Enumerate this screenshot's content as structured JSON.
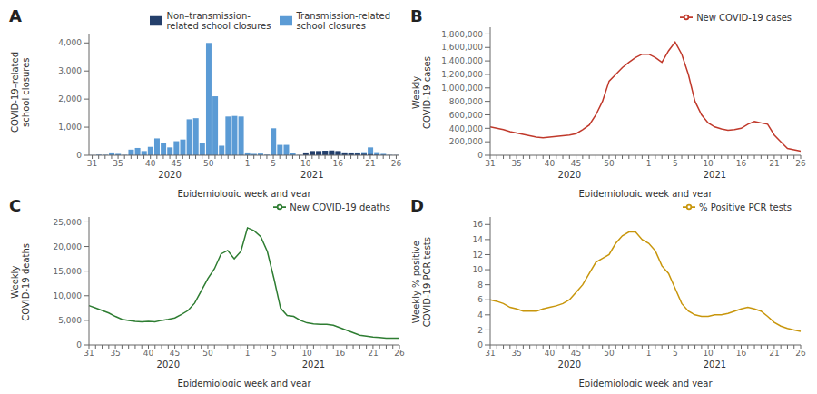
{
  "chart_data": [
    {
      "type": "bar",
      "title": "A",
      "x_label": "Epidemiologic week and year",
      "y_label": "COVID-19–related\nschool closures",
      "categories": [
        "31",
        null,
        null,
        null,
        "35",
        null,
        null,
        null,
        null,
        "40",
        null,
        null,
        null,
        "45",
        null,
        null,
        null,
        null,
        "50",
        null,
        null,
        null,
        null,
        null,
        "1",
        null,
        null,
        null,
        "5",
        null,
        null,
        null,
        null,
        "10",
        null,
        null,
        null,
        null,
        "16",
        null,
        null,
        null,
        null,
        "21",
        null,
        null,
        null,
        "26"
      ],
      "annotations": [
        {
          "text": "2020",
          "x": 12
        },
        {
          "text": "2021",
          "x": 34
        }
      ],
      "series": [
        {
          "name": "Transmission-related\nschool closures",
          "color": "#5b9bd5",
          "values": [
            5,
            20,
            15,
            100,
            50,
            10,
            200,
            260,
            150,
            300,
            600,
            430,
            280,
            500,
            560,
            1280,
            1320,
            420,
            4000,
            2100,
            340,
            1380,
            1400,
            1380,
            100,
            50,
            60,
            20,
            960,
            370,
            370,
            70,
            5,
            5,
            130,
            100,
            160,
            130,
            120,
            100,
            100,
            100,
            110,
            280,
            110,
            50,
            10,
            5
          ]
        },
        {
          "name": "Non–transmission-\nrelated school closures",
          "color": "#243f6b",
          "values": [
            2,
            5,
            3,
            5,
            5,
            5,
            5,
            5,
            5,
            5,
            5,
            5,
            5,
            5,
            5,
            5,
            5,
            5,
            5,
            5,
            5,
            5,
            5,
            5,
            5,
            5,
            5,
            5,
            5,
            5,
            5,
            5,
            5,
            100,
            150,
            150,
            160,
            170,
            150,
            100,
            80,
            60,
            50,
            40,
            20,
            10,
            5,
            5
          ]
        }
      ],
      "ylim": [
        0,
        4300
      ],
      "yticks": [
        0,
        {
          "value": 1000,
          "label": "1,000"
        },
        {
          "value": 2000,
          "label": "2,000"
        },
        {
          "value": 3000,
          "label": "3,000"
        },
        {
          "value": 4000,
          "label": "4,000"
        }
      ],
      "legend": "upper right",
      "grid": false
    },
    {
      "type": "line",
      "title": "B",
      "x_label": "Epidemiologic week and year",
      "y_label": "Weekly\nCOVID-19 cases",
      "categories": [
        "31",
        null,
        null,
        null,
        "35",
        null,
        null,
        null,
        null,
        "40",
        null,
        null,
        null,
        "45",
        null,
        null,
        null,
        null,
        "50",
        null,
        null,
        null,
        null,
        null,
        "1",
        null,
        null,
        null,
        "5",
        null,
        null,
        null,
        null,
        "10",
        null,
        null,
        null,
        null,
        "16",
        null,
        null,
        null,
        null,
        "21",
        null,
        null,
        null,
        "26"
      ],
      "annotations": [
        {
          "text": "2020",
          "x": 12
        },
        {
          "text": "2021",
          "x": 34
        }
      ],
      "series": [
        {
          "name": "New COVID-19 cases",
          "color": "#c0392b",
          "values": [
            420000,
            400000,
            380000,
            350000,
            330000,
            310000,
            290000,
            270000,
            260000,
            270000,
            280000,
            290000,
            300000,
            320000,
            380000,
            450000,
            600000,
            800000,
            1100000,
            1200000,
            1300000,
            1380000,
            1450000,
            1500000,
            1500000,
            1450000,
            1380000,
            1550000,
            1680000,
            1500000,
            1200000,
            800000,
            600000,
            480000,
            420000,
            390000,
            370000,
            380000,
            400000,
            460000,
            500000,
            480000,
            460000,
            300000,
            200000,
            100000,
            80000,
            60000
          ]
        }
      ],
      "ylim": [
        0,
        1900000
      ],
      "yticks": [
        0,
        {
          "value": 200000,
          "label": "200,000"
        },
        {
          "value": 400000,
          "label": "400,000"
        },
        {
          "value": 600000,
          "label": "600,000"
        },
        {
          "value": 800000,
          "label": "800,000"
        },
        {
          "value": 1000000,
          "label": "1,000,000"
        },
        {
          "value": 1200000,
          "label": "1,200,000"
        },
        {
          "value": 1400000,
          "label": "1,400,000"
        },
        {
          "value": 1600000,
          "label": "1,600,000"
        },
        {
          "value": 1800000,
          "label": "1,800,000"
        }
      ],
      "legend": "upper right",
      "grid": false
    },
    {
      "type": "line",
      "title": "C",
      "x_label": "Epidemiologic week and year",
      "y_label": "Weekly\nCOVID-19 deaths",
      "categories": [
        "31",
        null,
        null,
        null,
        "35",
        null,
        null,
        null,
        null,
        "40",
        null,
        null,
        null,
        "45",
        null,
        null,
        null,
        null,
        "50",
        null,
        null,
        null,
        null,
        null,
        "1",
        null,
        null,
        null,
        "5",
        null,
        null,
        null,
        null,
        "10",
        null,
        null,
        null,
        null,
        "16",
        null,
        null,
        null,
        null,
        "21",
        null,
        null,
        null,
        "26"
      ],
      "annotations": [
        {
          "text": "2020",
          "x": 12
        },
        {
          "text": "2021",
          "x": 34
        }
      ],
      "series": [
        {
          "name": "New COVID-19 deaths",
          "color": "#2e7d32",
          "values": [
            8000,
            7500,
            7000,
            6500,
            5800,
            5200,
            5000,
            4800,
            4700,
            4800,
            4700,
            5000,
            5200,
            5500,
            6200,
            7000,
            8500,
            11000,
            13500,
            15500,
            18500,
            19200,
            17500,
            19000,
            23800,
            23200,
            22000,
            19000,
            13500,
            7500,
            6000,
            5800,
            5000,
            4500,
            4300,
            4200,
            4200,
            4000,
            3500,
            3000,
            2500,
            2000,
            1800,
            1600,
            1500,
            1400,
            1400,
            1400
          ]
        }
      ],
      "ylim": [
        0,
        26000
      ],
      "yticks": [
        0,
        {
          "value": 5000,
          "label": "5,000"
        },
        {
          "value": 10000,
          "label": "10,000"
        },
        {
          "value": 15000,
          "label": "15,000"
        },
        {
          "value": 20000,
          "label": "20,000"
        },
        {
          "value": 25000,
          "label": "25,000"
        }
      ],
      "legend": "upper right",
      "grid": false
    },
    {
      "type": "line",
      "title": "D",
      "x_label": "Epidemiologic week and year",
      "y_label": "Weekly % positive\nCOVID-19 PCR tests",
      "categories": [
        "31",
        null,
        null,
        null,
        "35",
        null,
        null,
        null,
        null,
        "40",
        null,
        null,
        null,
        "45",
        null,
        null,
        null,
        null,
        "50",
        null,
        null,
        null,
        null,
        null,
        "1",
        null,
        null,
        null,
        "5",
        null,
        null,
        null,
        null,
        "10",
        null,
        null,
        null,
        null,
        "16",
        null,
        null,
        null,
        null,
        "21",
        null,
        null,
        null,
        "26"
      ],
      "annotations": [
        {
          "text": "2020",
          "x": 12
        },
        {
          "text": "2021",
          "x": 34
        }
      ],
      "series": [
        {
          "name": "% Positive PCR tests",
          "color": "#c8960c",
          "values": [
            6.0,
            5.8,
            5.5,
            5.0,
            4.8,
            4.5,
            4.5,
            4.5,
            4.8,
            5.0,
            5.2,
            5.5,
            6.0,
            7.0,
            8.0,
            9.5,
            11.0,
            11.5,
            12.0,
            13.5,
            14.5,
            15.0,
            15.0,
            14.0,
            13.5,
            12.5,
            10.5,
            9.5,
            7.5,
            5.5,
            4.5,
            4.0,
            3.8,
            3.8,
            4.0,
            4.0,
            4.2,
            4.5,
            4.8,
            5.0,
            4.8,
            4.5,
            3.8,
            3.0,
            2.5,
            2.2,
            2.0,
            1.8
          ]
        }
      ],
      "ylim": [
        0,
        17
      ],
      "yticks": [
        0,
        2,
        4,
        6,
        8,
        10,
        12,
        14,
        16
      ],
      "legend": "upper right",
      "grid": false
    }
  ]
}
